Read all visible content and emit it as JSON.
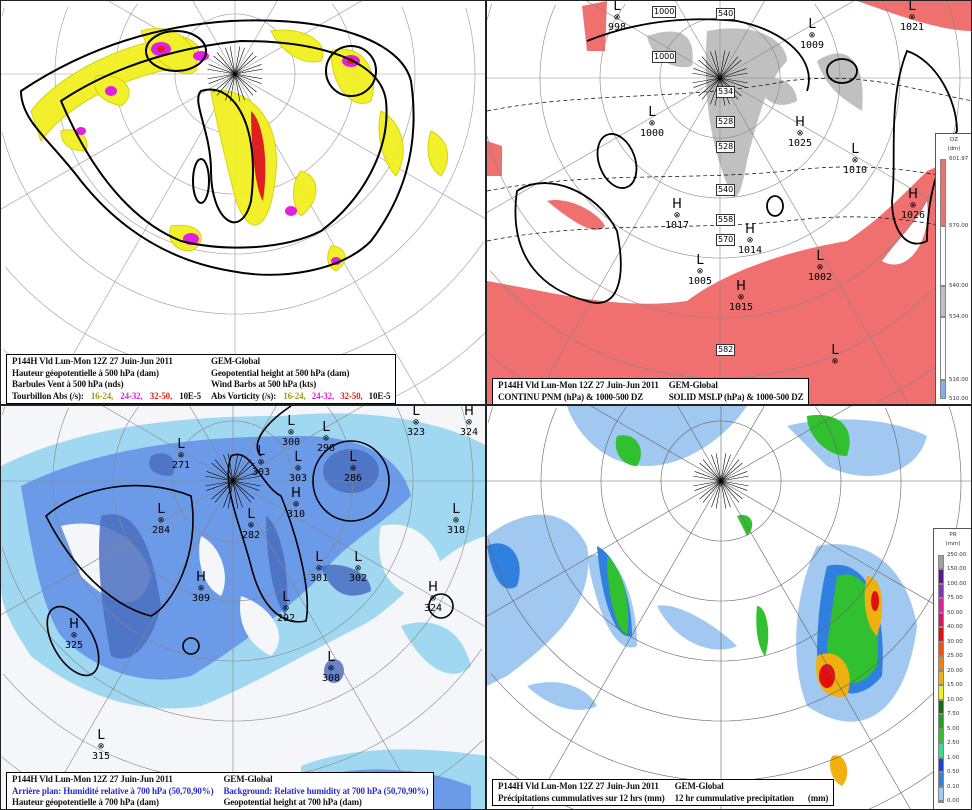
{
  "common": {
    "run": "P144H Vld Lun-Mon 12Z 27 Juin-Jun 2011",
    "model": "GEM-Global"
  },
  "panel_vorticity": {
    "fr_line1": "Hauteur géopotentielle à 500 hPa (dam)",
    "en_line1": "Geopotential height at 500 hPa (dam)",
    "fr_line2": "Barbules Vent à 500 hPa (nds)",
    "en_line2": "Wind Barbs at 500 hPa  (kts)",
    "fr_line3": "Tourbillon Abs (/s):",
    "en_line3": "Abs Vorticity (/s):",
    "ranges": [
      {
        "label": "16-24,",
        "color": "#9a9a20"
      },
      {
        "label": "24-32,",
        "color": "#e020e0"
      },
      {
        "label": "32-50,",
        "color": "#e02020"
      }
    ],
    "unit": "10E-5"
  },
  "panel_mslp": {
    "fr_line1": "CONTINU PNM  (hPa) & 1000-500 DZ",
    "en_line1": "SOLID  MSLP (hPa) & 1000-500 DZ",
    "pressure_centers": [
      {
        "type": "L",
        "value": "998"
      },
      {
        "type": "L",
        "value": "1000"
      },
      {
        "type": "L",
        "value": "1009"
      },
      {
        "type": "H",
        "value": "1025"
      },
      {
        "type": "L",
        "value": "1010"
      },
      {
        "type": "H",
        "value": "1017"
      },
      {
        "type": "H",
        "value": "1014"
      },
      {
        "type": "L",
        "value": "1005"
      },
      {
        "type": "H",
        "value": "1015"
      },
      {
        "type": "L",
        "value": "1002"
      },
      {
        "type": "H",
        "value": "1026"
      },
      {
        "type": "L",
        "value": "1021"
      },
      {
        "type": "L",
        "value": ""
      }
    ],
    "thickness_labels": [
      "1000",
      "1000",
      "540",
      "534",
      "528",
      "528",
      "540",
      "558",
      "570",
      "582"
    ],
    "colorbar": {
      "title": "DZ",
      "unit": "(dm)",
      "ticks": [
        "601.97",
        "570.00",
        "540.00",
        "534.00",
        "516.00",
        "510.00"
      ],
      "colors": [
        "#f07070",
        "#ffffff",
        "#c0c0c0",
        "#ffffff",
        "#80b0e8"
      ]
    }
  },
  "panel_humidity": {
    "fr_line1": "Arrière plan: Humidité relative à 700 hPa (50,70,90%)",
    "en_line1": "Background: Relative humidity at 700 hPa (50,70,90%)",
    "fr_line2": "Hauteur géopotentielle à 700 hPa (dam)",
    "en_line2": "Geopotential height at 700 hPa (dam)",
    "height_centers": [
      {
        "type": "L",
        "value": "271"
      },
      {
        "type": "L",
        "value": "303"
      },
      {
        "type": "L",
        "value": "300"
      },
      {
        "type": "L",
        "value": "303"
      },
      {
        "type": "L",
        "value": "296"
      },
      {
        "type": "L",
        "value": "286"
      },
      {
        "type": "H",
        "value": "310"
      },
      {
        "type": "L",
        "value": "318"
      },
      {
        "type": "L",
        "value": "323"
      },
      {
        "type": "H",
        "value": "324"
      },
      {
        "type": "L",
        "value": "284"
      },
      {
        "type": "L",
        "value": "282"
      },
      {
        "type": "H",
        "value": "309"
      },
      {
        "type": "L",
        "value": "301"
      },
      {
        "type": "L",
        "value": "302"
      },
      {
        "type": "H",
        "value": "324"
      },
      {
        "type": "L",
        "value": "292"
      },
      {
        "type": "H",
        "value": "325"
      },
      {
        "type": "L",
        "value": "308"
      },
      {
        "type": "L",
        "value": "315"
      }
    ]
  },
  "panel_precip": {
    "fr_line1": "Précipitations cummulatives sur 12 hrs (mm)",
    "en_line1": "12 hr cummulative precipitation",
    "en_unit": "(mm)",
    "colorbar": {
      "title": "PR",
      "unit": "(mm)",
      "ticks": [
        "250.00",
        "150.00",
        "100.00",
        "75.00",
        "50.00",
        "40.00",
        "30.00",
        "25.00",
        "20.00",
        "15.00",
        "10.00",
        "7.50",
        "5.00",
        "2.50",
        "1.00",
        "0.50",
        "0.10",
        "0.00"
      ],
      "colors": [
        "#a0a0a0",
        "#5a1a8a",
        "#8a30b0",
        "#e020a0",
        "#e01060",
        "#e01010",
        "#f05010",
        "#f08010",
        "#f0b010",
        "#f0f020",
        "#1a6a1a",
        "#20a020",
        "#30c030",
        "#30e090",
        "#2040d0",
        "#3080e0",
        "#a0c8f0",
        "#ffffff"
      ]
    }
  }
}
